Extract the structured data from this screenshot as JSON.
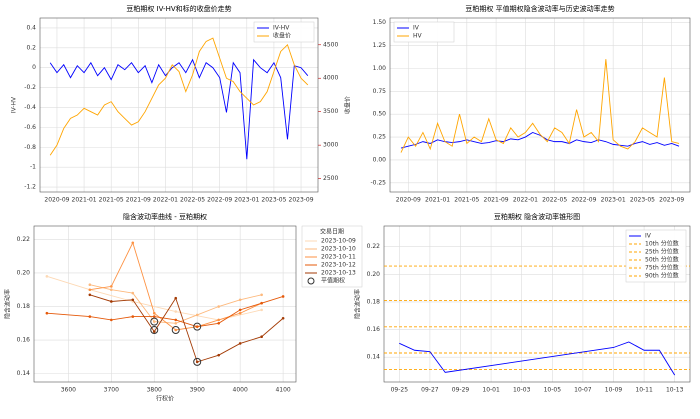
{
  "chart_data": [
    {
      "type": "line",
      "title": "豆粕期权 IV-HV和标的收盘价走势",
      "ylabel": "IV-HV",
      "y2label": "收盘价",
      "x": [
        "2020-08",
        "2020-09",
        "2020-10",
        "2020-11",
        "2020-12",
        "2021-01",
        "2021-02",
        "2021-03",
        "2021-04",
        "2021-05",
        "2021-06",
        "2021-07",
        "2021-08",
        "2021-09",
        "2021-10",
        "2021-11",
        "2021-12",
        "2022-01",
        "2022-02",
        "2022-03",
        "2022-04",
        "2022-05",
        "2022-06",
        "2022-07",
        "2022-08",
        "2022-09",
        "2022-10",
        "2022-11",
        "2022-12",
        "2023-01",
        "2023-02",
        "2023-03",
        "2023-04",
        "2023-05",
        "2023-06",
        "2023-07",
        "2023-08",
        "2023-09",
        "2023-10"
      ],
      "xticks": [
        "2020-09",
        "2021-01",
        "2021-05",
        "2021-09",
        "2022-01",
        "2022-05",
        "2022-09",
        "2023-01",
        "2023-05",
        "2023-09"
      ],
      "ylim": [
        -1.25,
        0.5
      ],
      "yticks": [
        -1.2,
        -1,
        -0.8,
        -0.6,
        -0.4,
        -0.2,
        0,
        0.2,
        0.4
      ],
      "y2lim": [
        2300,
        4900
      ],
      "y2ticks": [
        2500,
        3000,
        3500,
        4000,
        4500
      ],
      "grid": true,
      "legend": "upper right",
      "series": [
        {
          "name": "IV-HV",
          "color": "#0000ff",
          "values": [
            0.05,
            -0.05,
            0.03,
            -0.1,
            0.02,
            -0.05,
            0.05,
            -0.08,
            0.0,
            -0.12,
            0.03,
            -0.02,
            0.05,
            -0.05,
            0.02,
            -0.15,
            0.03,
            -0.08,
            0.0,
            0.05,
            -0.05,
            0.08,
            -0.1,
            0.05,
            0.0,
            -0.1,
            -0.45,
            0.05,
            -0.05,
            -0.92,
            0.08,
            0.0,
            -0.05,
            0.05,
            -0.1,
            -0.72,
            0.02,
            0.0,
            -0.08
          ]
        },
        {
          "name": "收盘价",
          "color": "#ffa500",
          "axis": "y2",
          "values": [
            2850,
            3000,
            3250,
            3400,
            3450,
            3550,
            3500,
            3450,
            3600,
            3650,
            3500,
            3400,
            3300,
            3350,
            3500,
            3700,
            3900,
            4000,
            4200,
            4100,
            3800,
            4050,
            4400,
            4550,
            4600,
            4300,
            4000,
            3950,
            3800,
            3700,
            3600,
            3650,
            3800,
            4100,
            4400,
            4500,
            4200,
            4000,
            3900
          ]
        }
      ]
    },
    {
      "type": "line",
      "title": "豆粕期权 平值期权隐含波动率与历史波动率走势",
      "x": [
        "2020-08",
        "2020-09",
        "2020-10",
        "2020-11",
        "2020-12",
        "2021-01",
        "2021-02",
        "2021-03",
        "2021-04",
        "2021-05",
        "2021-06",
        "2021-07",
        "2021-08",
        "2021-09",
        "2021-10",
        "2021-11",
        "2021-12",
        "2022-01",
        "2022-02",
        "2022-03",
        "2022-04",
        "2022-05",
        "2022-06",
        "2022-07",
        "2022-08",
        "2022-09",
        "2022-10",
        "2022-11",
        "2022-12",
        "2023-01",
        "2023-02",
        "2023-03",
        "2023-04",
        "2023-05",
        "2023-06",
        "2023-07",
        "2023-08",
        "2023-09",
        "2023-10"
      ],
      "xticks": [
        "2020-09",
        "2021-01",
        "2021-05",
        "2021-09",
        "2022-01",
        "2022-05",
        "2022-09",
        "2023-01",
        "2023-05",
        "2023-09"
      ],
      "ylim": [
        -0.35,
        1.55
      ],
      "yticks": [
        {
          "value": -0.25,
          "label": "-0.25"
        },
        {
          "value": 0,
          "label": "0.00"
        },
        {
          "value": 0.25,
          "label": "0.25"
        },
        {
          "value": 0.5,
          "label": "0.50"
        },
        {
          "value": 0.75,
          "label": "0.75"
        },
        {
          "value": 1,
          "label": "1.00"
        },
        {
          "value": 1.25,
          "label": "1.25"
        },
        {
          "value": 1.5,
          "label": "1.50"
        }
      ],
      "grid": true,
      "legend": "upper left",
      "series": [
        {
          "name": "IV",
          "color": "#0000ff",
          "values": [
            0.13,
            0.15,
            0.17,
            0.2,
            0.18,
            0.22,
            0.2,
            0.19,
            0.2,
            0.22,
            0.2,
            0.18,
            0.19,
            0.21,
            0.2,
            0.23,
            0.22,
            0.25,
            0.3,
            0.27,
            0.22,
            0.2,
            0.2,
            0.18,
            0.22,
            0.2,
            0.19,
            0.22,
            0.2,
            0.17,
            0.16,
            0.15,
            0.18,
            0.2,
            0.17,
            0.19,
            0.16,
            0.18,
            0.15
          ]
        },
        {
          "name": "HV",
          "color": "#ffa500",
          "values": [
            0.08,
            0.25,
            0.15,
            0.3,
            0.12,
            0.4,
            0.2,
            0.15,
            0.5,
            0.18,
            0.25,
            0.2,
            0.45,
            0.22,
            0.18,
            0.35,
            0.25,
            0.3,
            0.4,
            0.28,
            0.2,
            0.35,
            0.3,
            0.18,
            0.55,
            0.25,
            0.3,
            0.2,
            1.1,
            0.22,
            0.15,
            0.12,
            0.2,
            0.35,
            0.3,
            0.25,
            0.9,
            0.2,
            0.18
          ]
        }
      ]
    },
    {
      "type": "line",
      "title": "隐含波动率曲线 - 豆粕期权",
      "xlabel": "行权价",
      "ylabel": "隐含波动率",
      "xlim": [
        3520,
        4130
      ],
      "xticks": [
        3600,
        3700,
        3800,
        3900,
        4000,
        4100
      ],
      "ylim": [
        0.135,
        0.228
      ],
      "yticks": [
        {
          "value": 0.14,
          "label": "0.14"
        },
        {
          "value": 0.16,
          "label": "0.16"
        },
        {
          "value": 0.18,
          "label": "0.18"
        },
        {
          "value": 0.2,
          "label": "0.20"
        },
        {
          "value": 0.22,
          "label": "0.22"
        }
      ],
      "grid": true,
      "legend": "outside right",
      "legend_title": "交易日期",
      "series": [
        {
          "name": "2023-10-09",
          "color": "#fdd9b5",
          "x": [
            3550,
            3650,
            3750,
            3850,
            3950,
            4050
          ],
          "values": [
            0.198,
            0.19,
            0.183,
            0.177,
            0.172,
            0.178
          ]
        },
        {
          "name": "2023-10-10",
          "color": "#fdb97d",
          "x": [
            3650,
            3700,
            3750,
            3800,
            3850,
            3900,
            3950,
            4000,
            4050
          ],
          "values": [
            0.193,
            0.19,
            0.188,
            0.171,
            0.17,
            0.175,
            0.18,
            0.184,
            0.187
          ]
        },
        {
          "name": "2023-10-11",
          "color": "#fd9243",
          "x": [
            3650,
            3700,
            3750,
            3800,
            3850,
            3900,
            3950,
            4000,
            4050
          ],
          "values": [
            0.19,
            0.192,
            0.218,
            0.176,
            0.166,
            0.168,
            0.172,
            0.176,
            0.182
          ]
        },
        {
          "name": "2023-10-12",
          "color": "#e5590a",
          "x": [
            3550,
            3650,
            3700,
            3750,
            3800,
            3850,
            3900,
            3950,
            4000,
            4050,
            4100
          ],
          "values": [
            0.176,
            0.174,
            0.172,
            0.174,
            0.174,
            0.172,
            0.168,
            0.17,
            0.178,
            0.182,
            0.186
          ]
        },
        {
          "name": "2023-10-13",
          "color": "#a33a04",
          "x": [
            3650,
            3700,
            3750,
            3800,
            3850,
            3900,
            3950,
            4000,
            4050,
            4100
          ],
          "values": [
            0.187,
            0.183,
            0.184,
            0.165,
            0.185,
            0.147,
            0.151,
            0.158,
            0.162,
            0.173
          ]
        },
        {
          "name": "平值期权",
          "color": "#333333",
          "marker": "circle",
          "line": false,
          "x": [
            3800,
            3850,
            3800,
            3900,
            3900
          ],
          "values": [
            0.171,
            0.166,
            0.166,
            0.168,
            0.147
          ]
        }
      ]
    },
    {
      "type": "line",
      "title": "豆粕期权 隐含波动率锥形图",
      "ylabel": "隐含波动率",
      "xlim": [
        "09-24",
        "10-14"
      ],
      "xticks": [
        "09-25",
        "09-27",
        "09-29",
        "10-01",
        "10-03",
        "10-05",
        "10-07",
        "10-09",
        "10-11",
        "10-13"
      ],
      "ylim": [
        0.122,
        0.235
      ],
      "yticks": [
        {
          "value": 0.14,
          "label": "0.14"
        },
        {
          "value": 0.16,
          "label": "0.16"
        },
        {
          "value": 0.18,
          "label": "0.18"
        },
        {
          "value": 0.2,
          "label": "0.20"
        },
        {
          "value": 0.22,
          "label": "0.22"
        }
      ],
      "grid": true,
      "legend": "upper right",
      "series": [
        {
          "name": "IV",
          "color": "#0000ff",
          "x": [
            "09-25",
            "09-26",
            "09-27",
            "09-28",
            "10-09",
            "10-10",
            "10-11",
            "10-12",
            "10-13"
          ],
          "values": [
            0.15,
            0.145,
            0.144,
            0.129,
            0.147,
            0.151,
            0.145,
            0.145,
            0.127
          ]
        }
      ],
      "reference_lines": [
        {
          "name": "10th 分位数",
          "color": "#ffa500",
          "value": 0.131
        },
        {
          "name": "25th 分位数",
          "color": "#ffa500",
          "value": 0.143
        },
        {
          "name": "50th 分位数",
          "color": "#ffa500",
          "value": 0.162
        },
        {
          "name": "75th 分位数",
          "color": "#ffa500",
          "value": 0.181
        },
        {
          "name": "90th 分位数",
          "color": "#ffa500",
          "value": 0.206
        }
      ]
    }
  ]
}
